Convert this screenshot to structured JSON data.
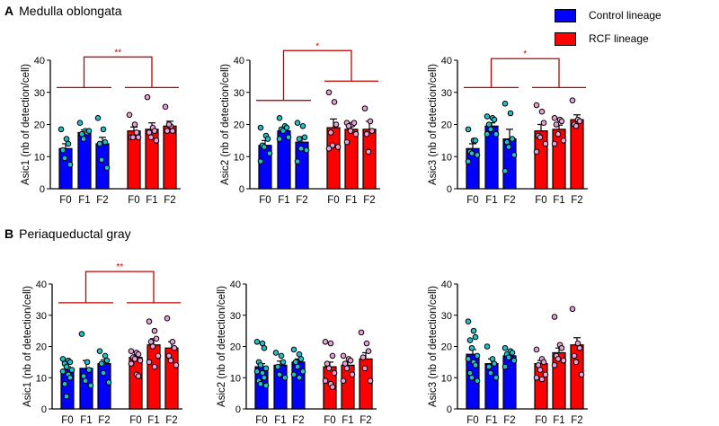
{
  "sections": [
    {
      "letter": "A",
      "title": "Medulla oblongata"
    },
    {
      "letter": "B",
      "title": "Periaqueductal gray"
    }
  ],
  "legend": [
    {
      "label": "Control lineage",
      "color": "#0000ff"
    },
    {
      "label": "RCF lineage",
      "color": "#ff0000"
    }
  ],
  "colors": {
    "control": "#0000ff",
    "rcf": "#ff0000",
    "control_dot": "#20c0c8",
    "rcf_dot": "#e8a0d8",
    "bracket": "#c00000"
  },
  "chart_data": [
    {
      "type": "bar",
      "section": "A",
      "ylabel": "Asic1 (nb of detection/cell)",
      "ylim": [
        0,
        40
      ],
      "yticks": [
        "0",
        "10",
        "20",
        "30",
        "40"
      ],
      "categories": [
        "F0",
        "F1",
        "F2",
        "F0",
        "F1",
        "F2"
      ],
      "series": [
        {
          "name": "Control lineage",
          "means": [
            12.5,
            17.5,
            14
          ],
          "sem": [
            1.5,
            0.8,
            2
          ],
          "points": [
            [
              18.5,
              15.5,
              14,
              12,
              9.5,
              7.5
            ],
            [
              20.5,
              18,
              17.5,
              17,
              15.5,
              18
            ],
            [
              22,
              18.5,
              14.5,
              14,
              9,
              6.5
            ]
          ]
        },
        {
          "name": "RCF lineage",
          "means": [
            18,
            18.5,
            19.5
          ],
          "sem": [
            1.2,
            2,
            1.5
          ],
          "points": [
            [
              23,
              20,
              17.5,
              16,
              16,
              16
            ],
            [
              28.5,
              19,
              18,
              17.5,
              16,
              15
            ],
            [
              25.5,
              19.5,
              18,
              18,
              20
            ]
          ]
        }
      ],
      "significance": {
        "label": "**",
        "top": 41,
        "control_level": 31.5,
        "rcf_level": 31.5
      }
    },
    {
      "type": "bar",
      "section": "A",
      "ylabel": "Asic2 (nb of detection/cell)",
      "ylim": [
        0,
        40
      ],
      "yticks": [
        "0",
        "10",
        "20",
        "30",
        "40"
      ],
      "categories": [
        "F0",
        "F1",
        "F2",
        "F0",
        "F1",
        "F2"
      ],
      "series": [
        {
          "name": "Control lineage",
          "means": [
            13.5,
            18,
            14.5
          ],
          "sem": [
            1.5,
            1,
            1.7
          ],
          "points": [
            [
              19,
              16.5,
              15.5,
              13.5,
              13,
              11,
              8.5
            ],
            [
              22,
              19.5,
              19,
              18.5,
              18,
              16,
              15.5
            ],
            [
              20.5,
              19.5,
              16,
              15.5,
              12.5,
              12,
              8.5
            ]
          ]
        },
        {
          "name": "RCF lineage",
          "means": [
            19,
            18.5,
            18.5
          ],
          "sem": [
            2.7,
            1,
            2.5
          ],
          "points": [
            [
              30,
              27,
              20,
              17.5,
              13.5,
              13,
              12.5
            ],
            [
              20.5,
              20,
              20.5,
              19.5,
              18,
              17,
              14.5
            ],
            [
              25,
              21,
              18,
              17,
              11.5
            ]
          ]
        }
      ],
      "significance": {
        "label": "*",
        "top": 43,
        "control_level": 27.5,
        "rcf_level": 33.5
      }
    },
    {
      "type": "bar",
      "section": "A",
      "ylabel": "Asic3 (nb of detection/cell)",
      "ylim": [
        0,
        40
      ],
      "yticks": [
        "0",
        "10",
        "20",
        "30",
        "40"
      ],
      "categories": [
        "F0",
        "F1",
        "F2",
        "F0",
        "F1",
        "F2"
      ],
      "series": [
        {
          "name": "Control lineage",
          "means": [
            12.5,
            19.5,
            15.5
          ],
          "sem": [
            1.5,
            1,
            3
          ],
          "points": [
            [
              18.5,
              15,
              15,
              11.5,
              11,
              10.5,
              8.5
            ],
            [
              22.5,
              22,
              21.5,
              20,
              18.5,
              17,
              17
            ],
            [
              26.5,
              23.5,
              15.5,
              14.5,
              13,
              10.5,
              5.5
            ]
          ]
        },
        {
          "name": "RCF lineage",
          "means": [
            18,
            18.5,
            21.5
          ],
          "sem": [
            2,
            1.3,
            1.5
          ],
          "points": [
            [
              26,
              24,
              20.5,
              16.5,
              16,
              14,
              11.5
            ],
            [
              22,
              21.5,
              21,
              20,
              17,
              15,
              14
            ],
            [
              27.5,
              21.5,
              21,
              20,
              19.5
            ]
          ]
        }
      ],
      "significance": {
        "label": "*",
        "top": 40.5,
        "control_level": 31.5,
        "rcf_level": 31.5
      }
    },
    {
      "type": "bar",
      "section": "B",
      "ylabel": "Asic1 (nb of detection/cell)",
      "ylim": [
        0,
        40
      ],
      "yticks": [
        "0",
        "10",
        "20",
        "30",
        "40"
      ],
      "categories": [
        "F0",
        "F1",
        "F2",
        "F0",
        "F1",
        "F2"
      ],
      "series": [
        {
          "name": "Control lineage",
          "means": [
            12.5,
            13,
            14.5
          ],
          "sem": [
            1,
            2.5,
            1.2
          ],
          "points": [
            [
              16,
              15.5,
              15,
              14.5,
              13.5,
              12.5,
              12,
              11,
              10,
              8,
              4
            ],
            [
              24,
              15,
              12.5,
              10.5,
              9,
              7.5
            ],
            [
              18.5,
              17,
              15.5,
              14.5,
              11.5,
              8.5
            ]
          ]
        },
        {
          "name": "RCF lineage",
          "means": [
            16.5,
            20.5,
            19.5
          ],
          "sem": [
            0.8,
            2,
            2
          ],
          "points": [
            [
              18.5,
              18,
              17.5,
              16.5,
              16,
              15.5,
              14.5,
              11,
              10.5
            ],
            [
              28,
              25,
              22.5,
              21.5,
              20,
              17,
              15,
              13.5
            ],
            [
              29,
              21.5,
              19.5,
              17,
              15.5,
              14
            ]
          ]
        }
      ],
      "significance": {
        "label": "**",
        "top": 44,
        "control_level": 34,
        "rcf_level": 34
      }
    },
    {
      "type": "bar",
      "section": "B",
      "ylabel": "Asic2 (nb of detection/cell)",
      "ylim": [
        0,
        40
      ],
      "yticks": [
        "0",
        "10",
        "20",
        "30",
        "40"
      ],
      "categories": [
        "F0",
        "F1",
        "F2",
        "F0",
        "F1",
        "F2"
      ],
      "series": [
        {
          "name": "Control lineage",
          "means": [
            13.5,
            14,
            15
          ],
          "sem": [
            1,
            1.3,
            1
          ],
          "points": [
            [
              21.5,
              21,
              19.5,
              15,
              14,
              13,
              12,
              11.5,
              10,
              9,
              8,
              7.5
            ],
            [
              18,
              17,
              15,
              13.5,
              11,
              10
            ],
            [
              19,
              17.5,
              16,
              15,
              13.5,
              12,
              11,
              10
            ]
          ]
        },
        {
          "name": "RCF lineage",
          "means": [
            13.5,
            14,
            16
          ],
          "sem": [
            1.5,
            1,
            2
          ],
          "points": [
            [
              21.5,
              21,
              17,
              14.5,
              13,
              11.5,
              9,
              8,
              7
            ],
            [
              17,
              16,
              15.5,
              14.5,
              13,
              11,
              9
            ],
            [
              24.5,
              21,
              18.5,
              16.5,
              13,
              9
            ]
          ]
        }
      ]
    },
    {
      "type": "bar",
      "section": "B",
      "ylabel": "Asic3 (nb of detection/cell)",
      "ylim": [
        0,
        40
      ],
      "yticks": [
        "0",
        "10",
        "20",
        "30",
        "40"
      ],
      "categories": [
        "F0",
        "F1",
        "F2",
        "F0",
        "F1",
        "F2"
      ],
      "series": [
        {
          "name": "Control lineage",
          "means": [
            17.5,
            14.5,
            17
          ],
          "sem": [
            1.5,
            1.5,
            0.7
          ],
          "points": [
            [
              28,
              25,
              23,
              22,
              19.5,
              17,
              16,
              15,
              14,
              11.5,
              10,
              9
            ],
            [
              20,
              16,
              14.5,
              13.5,
              11.5,
              10
            ],
            [
              19.5,
              18.5,
              18,
              17.5,
              16.5,
              15.5,
              13.5
            ]
          ]
        },
        {
          "name": "RCF lineage",
          "means": [
            14.5,
            18,
            20.5
          ],
          "sem": [
            1,
            1.5,
            2.3
          ],
          "points": [
            [
              19,
              16,
              15,
              14,
              12.5,
              11,
              10,
              9.5
            ],
            [
              29.5,
              20.5,
              19.5,
              17,
              16,
              15.5,
              14
            ],
            [
              32,
              21,
              19.5,
              17,
              15,
              11
            ]
          ]
        }
      ]
    }
  ]
}
